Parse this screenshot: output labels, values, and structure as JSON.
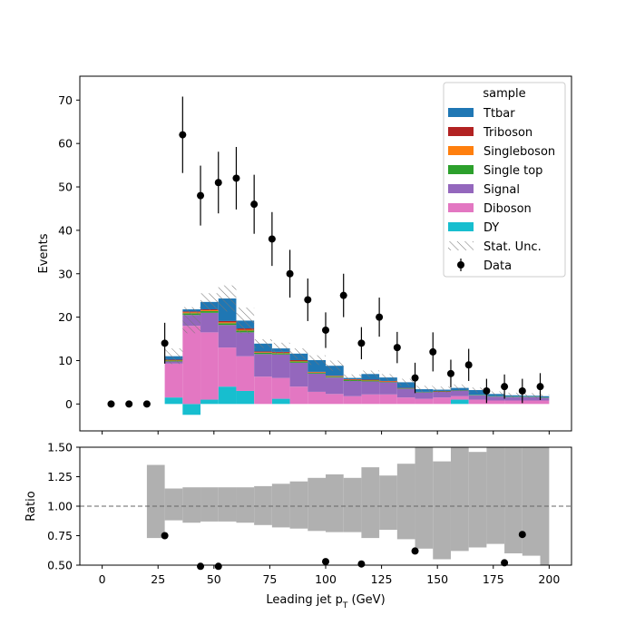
{
  "chart_data": [
    {
      "type": "bar",
      "stacked": true,
      "ylabel": "Events",
      "xlim": [
        -10,
        210
      ],
      "ylim": [
        -6.2,
        75.5
      ],
      "yticks": [
        0,
        10,
        20,
        30,
        40,
        50,
        60,
        70
      ],
      "bin_edges": [
        20,
        28,
        36,
        44,
        52,
        60,
        68,
        76,
        84,
        92,
        100,
        108,
        116,
        124,
        132,
        140,
        148,
        156,
        164,
        172,
        180,
        188,
        196,
        200
      ],
      "legend": {
        "title": "sample",
        "placement": "top-right",
        "stat_unc_label": "Stat. Unc.",
        "data_label": "Data"
      },
      "series": [
        {
          "name": "DY",
          "color": "#17becf",
          "values": [
            0,
            1.5,
            -2.5,
            1,
            4,
            3,
            0,
            1.2,
            0,
            0,
            0,
            0,
            0,
            0,
            0,
            0,
            0,
            1,
            0,
            0,
            0,
            0,
            0
          ]
        },
        {
          "name": "Diboson",
          "color": "#e377c2",
          "values": [
            0,
            7.8,
            18,
            15.5,
            9,
            8,
            6.3,
            4.8,
            4,
            2.8,
            2.3,
            1.8,
            2.2,
            2.2,
            1.5,
            1.2,
            1.5,
            0.8,
            1,
            0.8,
            0.8,
            0.8,
            0.8
          ]
        },
        {
          "name": "Signal",
          "color": "#9467bd",
          "values": [
            0,
            0.5,
            2.5,
            4.5,
            5.2,
            5.5,
            5.2,
            5.4,
            5.5,
            4.2,
            3.8,
            3.5,
            3,
            2.8,
            2,
            1.5,
            1.3,
            1.3,
            1,
            0.9,
            0.8,
            0.8,
            0.6
          ]
        },
        {
          "name": "Single top",
          "color": "#2ca02c",
          "values": [
            0,
            0.2,
            0.4,
            0.4,
            0.4,
            0.4,
            0.3,
            0.3,
            0.3,
            0.2,
            0.2,
            0.2,
            0.2,
            0.1,
            0.1,
            0.1,
            0.1,
            0.1,
            0.1,
            0.1,
            0.1,
            0.1,
            0.1
          ]
        },
        {
          "name": "Singleboson",
          "color": "#ff7f0e",
          "values": [
            0,
            0.1,
            0.2,
            0.2,
            0.2,
            0.2,
            0.1,
            0.1,
            0.1,
            0.1,
            0.1,
            0.1,
            0.1,
            0.1,
            0,
            0,
            0,
            0,
            0,
            0,
            0,
            0,
            0
          ]
        },
        {
          "name": "Triboson",
          "color": "#b22222",
          "values": [
            0,
            0.1,
            0.2,
            0.2,
            0.3,
            0.3,
            0.2,
            0.2,
            0.2,
            0.1,
            0.1,
            0.1,
            0.1,
            0.1,
            0.1,
            0,
            0.1,
            0,
            0,
            0,
            0,
            0,
            0
          ]
        },
        {
          "name": "Ttbar",
          "color": "#1f77b4",
          "values": [
            0,
            0.8,
            0.5,
            1.7,
            5.2,
            1.8,
            1.8,
            0.8,
            1.5,
            2.7,
            2.3,
            0.3,
            1.3,
            0.8,
            1.3,
            0.6,
            0.3,
            0.5,
            1.1,
            0.5,
            0.3,
            0.2,
            0.3
          ]
        }
      ],
      "stat_unc": [
        0,
        1.8,
        3,
        2,
        3,
        3,
        1,
        1.3,
        1.2,
        1.1,
        1.2,
        0.8,
        0.8,
        0.8,
        0.8,
        0.8,
        0.7,
        0.8,
        0.6,
        0.6,
        0.6,
        0.6,
        0.4
      ],
      "data_points": {
        "x": [
          4,
          12,
          20,
          28,
          36,
          44,
          52,
          60,
          68,
          76,
          84,
          92,
          100,
          108,
          116,
          124,
          132,
          140,
          148,
          156,
          164,
          172,
          180,
          188,
          196
        ],
        "y": [
          0,
          0,
          0,
          14,
          62,
          48,
          51,
          52,
          46,
          38,
          30,
          24,
          17,
          25,
          14,
          20,
          13,
          6,
          12,
          7,
          9,
          3,
          4,
          3,
          4
        ],
        "yerr": [
          0,
          0,
          0,
          4.7,
          8.8,
          6.9,
          7.1,
          7.2,
          6.8,
          6.2,
          5.5,
          4.9,
          4.1,
          5,
          3.7,
          4.5,
          3.6,
          3.5,
          4.5,
          3.2,
          3.7,
          2.8,
          2.8,
          2.8,
          3.1
        ]
      }
    },
    {
      "type": "bar",
      "xlabel": "Leading jet  p",
      "xlabel_subscript": "T",
      "xlabel_unit": " (GeV)",
      "ylabel": "Ratio",
      "xlim": [
        -10,
        210
      ],
      "ylim": [
        0.5,
        1.5
      ],
      "xticks": [
        0,
        25,
        50,
        75,
        100,
        125,
        150,
        175,
        200
      ],
      "yticks": [
        0.5,
        0.75,
        1.0,
        1.25,
        1.5
      ],
      "ytick_labels": [
        "0.50",
        "0.75",
        "1.00",
        "1.25",
        "1.50"
      ],
      "reference_line": 1.0,
      "unc_band": {
        "color": "#b0b0b0",
        "low": [
          0.73,
          0.88,
          0.86,
          0.87,
          0.87,
          0.86,
          0.84,
          0.82,
          0.81,
          0.79,
          0.78,
          0.78,
          0.73,
          0.8,
          0.72,
          0.64,
          0.55,
          0.62,
          0.65,
          0.68,
          0.6,
          0.58,
          0.5
        ],
        "high": [
          1.35,
          1.15,
          1.16,
          1.16,
          1.16,
          1.16,
          1.17,
          1.19,
          1.21,
          1.24,
          1.27,
          1.24,
          1.33,
          1.26,
          1.36,
          1.5,
          1.38,
          1.5,
          1.46,
          1.5,
          1.5,
          1.5,
          1.5
        ]
      },
      "points": {
        "x": [
          28,
          44,
          52,
          100,
          116,
          140,
          180,
          188
        ],
        "y": [
          0.75,
          0.49,
          0.49,
          0.53,
          0.51,
          0.62,
          0.52,
          0.76
        ]
      }
    }
  ]
}
